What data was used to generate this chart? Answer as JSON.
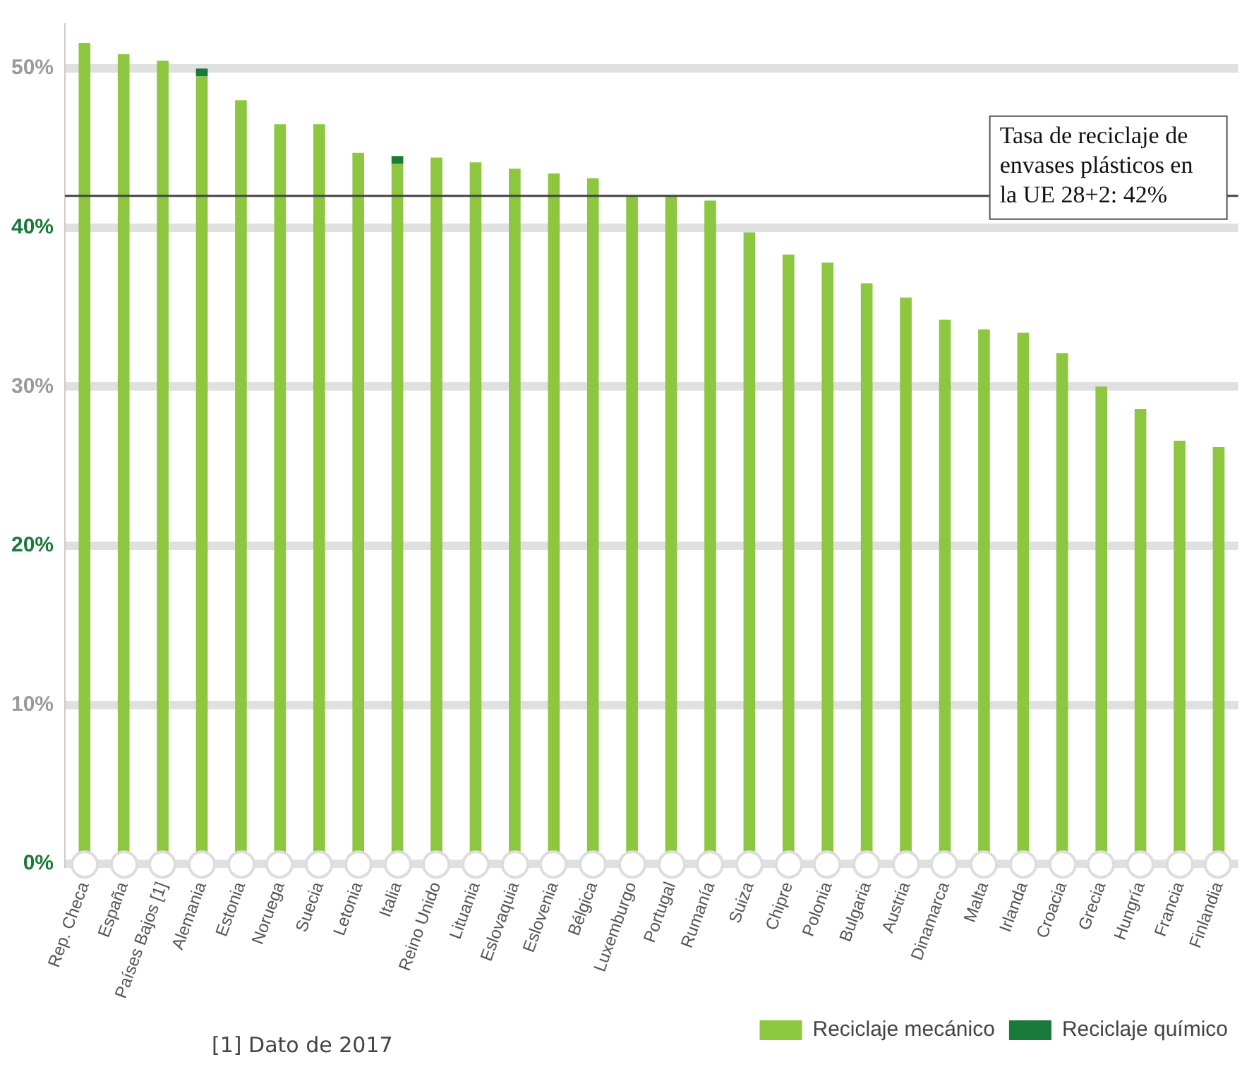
{
  "chart_data": {
    "type": "bar",
    "stacked": true,
    "categories": [
      "Rep. Checa",
      "España",
      "Países Bajos [1]",
      "Alemania",
      "Estonia",
      "Noruega",
      "Suecia",
      "Letonia",
      "Italia",
      "Reino Unido",
      "Lituania",
      "Eslovaquia",
      "Eslovenia",
      "Bélgica",
      "Luxemburgo",
      "Portugal",
      "Rumanía",
      "Suiza",
      "Chipre",
      "Polonia",
      "Bulgaria",
      "Austria",
      "Dinamarca",
      "Malta",
      "Irlanda",
      "Croacia",
      "Grecia",
      "Hungría",
      "Francia",
      "Finlandia"
    ],
    "series": [
      {
        "name": "Reciclaje mecánico",
        "color": "#8dc63f",
        "values": [
          51.6,
          50.9,
          50.5,
          49.5,
          48.0,
          46.5,
          46.5,
          44.7,
          44.0,
          44.4,
          44.1,
          43.7,
          43.4,
          43.1,
          42.0,
          42.0,
          41.7,
          39.7,
          38.3,
          37.8,
          36.5,
          35.6,
          34.2,
          33.6,
          33.4,
          32.1,
          30.0,
          28.6,
          26.6,
          26.2
        ]
      },
      {
        "name": "Reciclaje químico",
        "color": "#1a7a3a",
        "values": [
          null,
          null,
          null,
          0.5,
          null,
          null,
          null,
          null,
          0.5,
          null,
          null,
          null,
          null,
          null,
          null,
          null,
          null,
          null,
          null,
          null,
          null,
          null,
          null,
          null,
          null,
          null,
          null,
          null,
          null,
          null
        ]
      }
    ],
    "ylim": [
      0,
      52.8
    ],
    "yticks": [
      {
        "value": 0,
        "label": "0%"
      },
      {
        "value": 10,
        "label": "10%"
      },
      {
        "value": 20,
        "label": "20%"
      },
      {
        "value": 30,
        "label": "30%"
      },
      {
        "value": 40,
        "label": "40%"
      },
      {
        "value": 50,
        "label": "50%"
      }
    ],
    "grid": "y",
    "legend": "bottom right",
    "ref_lines": [
      {
        "axis": "y",
        "value": 42,
        "label": "Tasa de reciclaje de envases plásticos en la UE 28+2: 42%",
        "color": "#444444"
      }
    ],
    "annotations": [
      "[1] Dato de 2017"
    ]
  }
}
